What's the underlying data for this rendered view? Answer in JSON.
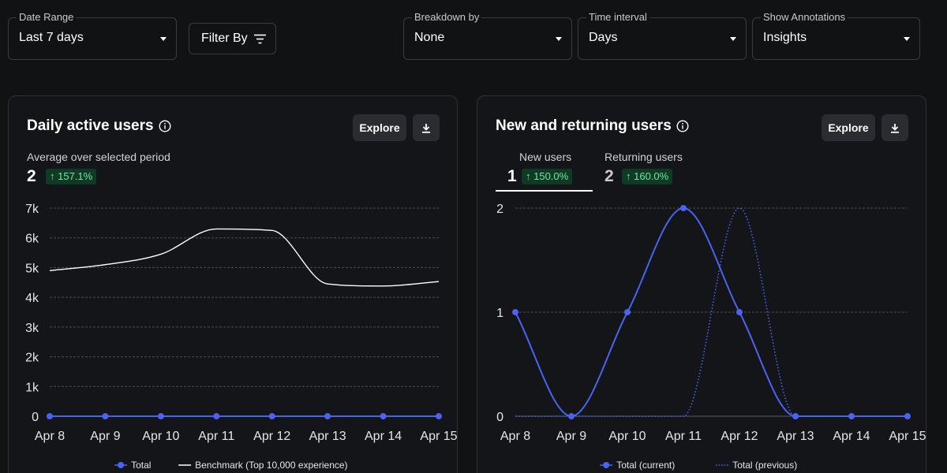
{
  "filters": {
    "date_range": {
      "label": "Date Range",
      "value": "Last 7 days"
    },
    "filter_by": {
      "label": "Filter By"
    },
    "breakdown": {
      "label": "Breakdown by",
      "value": "None"
    },
    "interval": {
      "label": "Time interval",
      "value": "Days"
    },
    "annotations": {
      "label": "Show Annotations",
      "value": "Insights"
    }
  },
  "cards": {
    "dau": {
      "title": "Daily active users",
      "explore_label": "Explore",
      "subtitle": "Average over selected period",
      "value": "2",
      "change": "↑ 157.1%"
    },
    "nru": {
      "title": "New and returning users",
      "explore_label": "Explore",
      "new_label": "New users",
      "new_value": "1",
      "new_change": "↑ 150.0%",
      "returning_label": "Returning users",
      "returning_value": "2",
      "returning_change": "↑ 160.0%"
    }
  },
  "colors": {
    "accent": "#4a63f0",
    "benchmark": "#ffffff",
    "positive_bg": "#103a26",
    "positive_text": "#6ee7a0"
  },
  "icons": {
    "info": "info-circle-icon",
    "download": "download-icon",
    "filter": "filter-lines-icon",
    "dropdown": "caret-down-icon"
  },
  "chart_data": [
    {
      "type": "line",
      "categories": [
        "Apr 8",
        "Apr 9",
        "Apr 10",
        "Apr 11",
        "Apr 12",
        "Apr 13",
        "Apr 14",
        "Apr 15"
      ],
      "y_ticks": [
        "0",
        "1k",
        "2k",
        "3k",
        "4k",
        "5k",
        "6k",
        "7k"
      ],
      "ylim": [
        0,
        7000
      ],
      "grid": true,
      "legend": "bottom-center",
      "series": [
        {
          "name": "Total",
          "values": [
            0,
            0,
            0,
            0,
            0,
            0,
            0,
            0
          ],
          "color": "#4a63f0",
          "markers": true
        },
        {
          "name": "Benchmark (Top 10,000 experience)",
          "values": [
            4900,
            5100,
            5450,
            6300,
            6250,
            4450,
            4380,
            4530
          ],
          "color": "#ffffff",
          "markers": false
        }
      ]
    },
    {
      "type": "line",
      "categories": [
        "Apr 8",
        "Apr 9",
        "Apr 10",
        "Apr 11",
        "Apr 12",
        "Apr 13",
        "Apr 14",
        "Apr 15"
      ],
      "y_ticks": [
        "0",
        "1",
        "2"
      ],
      "ylim": [
        0,
        2
      ],
      "grid": true,
      "legend": "bottom-center",
      "series": [
        {
          "name": "Total (current)",
          "values": [
            1,
            0,
            1,
            2,
            1,
            0,
            0,
            0
          ],
          "color": "#4a63f0",
          "markers": true,
          "style": "solid"
        },
        {
          "name": "Total (previous)",
          "values": [
            0,
            0,
            0,
            0,
            2,
            0,
            0,
            0
          ],
          "color": "#4a63f0",
          "markers": false,
          "style": "dotted"
        }
      ]
    }
  ]
}
